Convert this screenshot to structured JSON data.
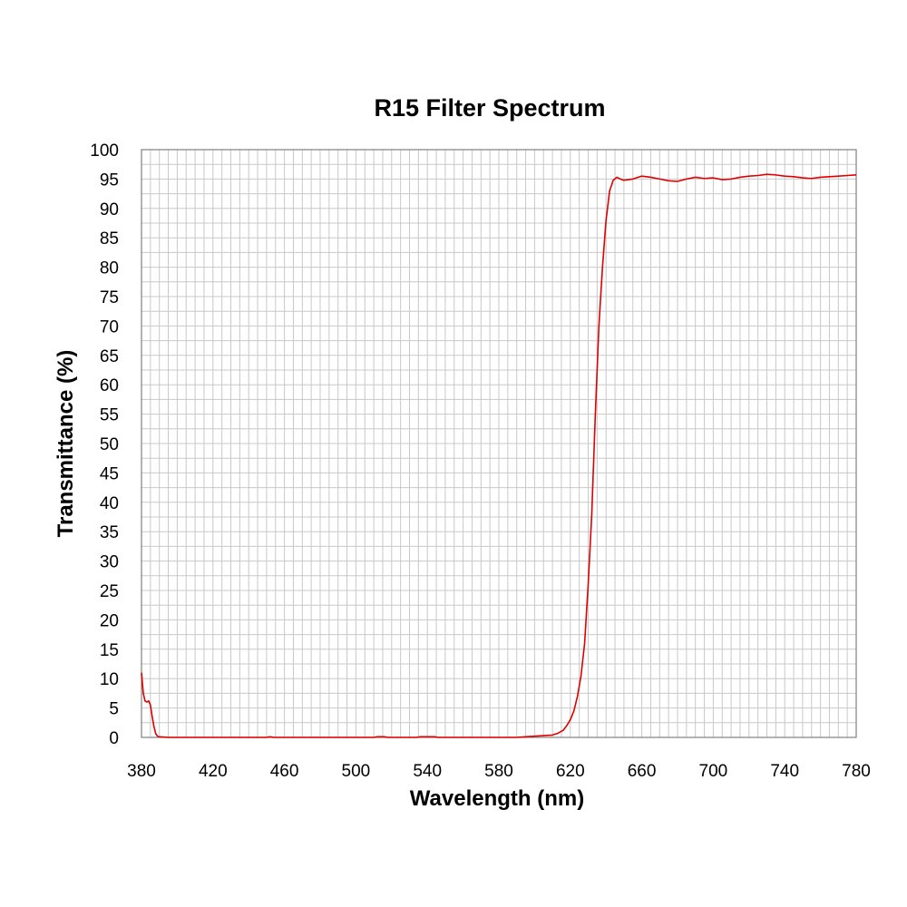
{
  "chart_data": {
    "type": "line",
    "title": "R15 Filter Spectrum",
    "xlabel": "Wavelength (nm)",
    "ylabel": "Transmittance (%)",
    "xlim": [
      380,
      780
    ],
    "ylim": [
      0,
      100
    ],
    "x_ticks": [
      380,
      420,
      460,
      500,
      540,
      580,
      620,
      660,
      700,
      740,
      780
    ],
    "y_ticks": [
      0,
      5,
      10,
      15,
      20,
      25,
      30,
      35,
      40,
      45,
      50,
      55,
      60,
      65,
      70,
      75,
      80,
      85,
      90,
      95,
      100
    ],
    "x_minor_step": 5,
    "y_minor_step": 2.5,
    "grid": true,
    "legend": "none",
    "series": [
      {
        "color": "#e00000",
        "points": [
          [
            380,
            11.0
          ],
          [
            381,
            7.5
          ],
          [
            382,
            6.2
          ],
          [
            383,
            6.0
          ],
          [
            384,
            6.2
          ],
          [
            385,
            5.5
          ],
          [
            386,
            3.5
          ],
          [
            387,
            1.8
          ],
          [
            388,
            0.6
          ],
          [
            389,
            0.2
          ],
          [
            390,
            0.1
          ],
          [
            395,
            0.0
          ],
          [
            400,
            0.0
          ],
          [
            450,
            0.0
          ],
          [
            452,
            0.1
          ],
          [
            454,
            0.0
          ],
          [
            510,
            0.0
          ],
          [
            512,
            0.1
          ],
          [
            516,
            0.1
          ],
          [
            518,
            0.0
          ],
          [
            534,
            0.0
          ],
          [
            536,
            0.1
          ],
          [
            544,
            0.1
          ],
          [
            546,
            0.0
          ],
          [
            590,
            0.0
          ],
          [
            595,
            0.1
          ],
          [
            600,
            0.2
          ],
          [
            605,
            0.3
          ],
          [
            610,
            0.4
          ],
          [
            613,
            0.7
          ],
          [
            616,
            1.2
          ],
          [
            618,
            2.0
          ],
          [
            620,
            3.0
          ],
          [
            622,
            4.5
          ],
          [
            624,
            7.0
          ],
          [
            626,
            10.5
          ],
          [
            628,
            16.0
          ],
          [
            630,
            26.0
          ],
          [
            632,
            38.0
          ],
          [
            634,
            55.0
          ],
          [
            636,
            70.0
          ],
          [
            638,
            80.0
          ],
          [
            640,
            88.0
          ],
          [
            642,
            93.0
          ],
          [
            644,
            94.8
          ],
          [
            646,
            95.3
          ],
          [
            648,
            95.0
          ],
          [
            650,
            94.8
          ],
          [
            655,
            95.0
          ],
          [
            660,
            95.5
          ],
          [
            665,
            95.3
          ],
          [
            670,
            95.0
          ],
          [
            675,
            94.7
          ],
          [
            680,
            94.6
          ],
          [
            685,
            95.0
          ],
          [
            690,
            95.3
          ],
          [
            695,
            95.1
          ],
          [
            700,
            95.2
          ],
          [
            705,
            94.9
          ],
          [
            710,
            95.0
          ],
          [
            715,
            95.3
          ],
          [
            720,
            95.5
          ],
          [
            725,
            95.6
          ],
          [
            730,
            95.8
          ],
          [
            735,
            95.7
          ],
          [
            740,
            95.5
          ],
          [
            745,
            95.4
          ],
          [
            750,
            95.2
          ],
          [
            755,
            95.1
          ],
          [
            760,
            95.3
          ],
          [
            765,
            95.4
          ],
          [
            770,
            95.5
          ],
          [
            775,
            95.6
          ],
          [
            780,
            95.7
          ]
        ]
      }
    ]
  }
}
